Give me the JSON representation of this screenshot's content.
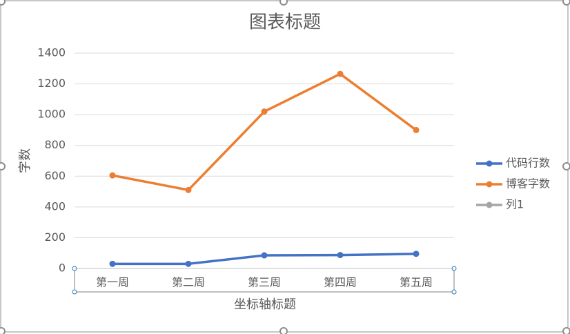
{
  "chart_data": {
    "type": "line",
    "title": "图表标题",
    "y_label": "字数",
    "x_label": "坐标轴标题",
    "categories": [
      "第一周",
      "第二周",
      "第三周",
      "第四周",
      "第五周"
    ],
    "series": [
      {
        "name": "代码行数",
        "color": "#4472c4",
        "values": [
          30,
          30,
          85,
          87,
          95
        ]
      },
      {
        "name": "博客字数",
        "color": "#ed7d31",
        "values": [
          605,
          510,
          1020,
          1265,
          900
        ]
      },
      {
        "name": "列1",
        "color": "#a5a5a5",
        "values": [
          null,
          null,
          null,
          null,
          null
        ]
      }
    ],
    "ylim": [
      0,
      1400
    ],
    "yticks": [
      0,
      200,
      400,
      600,
      800,
      1000,
      1200,
      1400
    ],
    "grid": true,
    "legend": "right"
  }
}
